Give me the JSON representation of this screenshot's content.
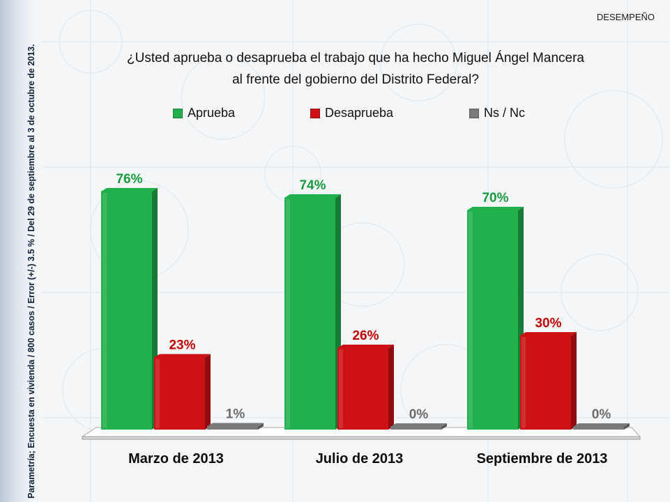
{
  "header": {
    "section": "DESEMPEÑO",
    "side_note": "Parametría; Encuesta en vivienda / 800 casos / Error (+/-) 3.5 % / Del 29 de septiembre al 3 de octubre de 2013."
  },
  "chart_data": {
    "type": "bar",
    "title_line1": "¿Usted aprueba o desaprueba el trabajo que ha hecho Miguel Ángel Mancera",
    "title_line2": "al frente del gobierno del Distrito Federal?",
    "categories": [
      "Marzo de 2013",
      "Julio de 2013",
      "Septiembre de 2013"
    ],
    "series": [
      {
        "name": "Aprueba",
        "values": [
          76,
          74,
          70
        ],
        "labels": [
          "76%",
          "74%",
          "70%"
        ],
        "color": "#21b04b",
        "label_color": "#1a9a3e"
      },
      {
        "name": "Desaprueba",
        "values": [
          23,
          26,
          30
        ],
        "labels": [
          "23%",
          "26%",
          "30%"
        ],
        "color": "#cc1214",
        "label_color": "#c00000"
      },
      {
        "name": "Ns / Nc",
        "values": [
          1,
          0,
          0
        ],
        "labels": [
          "1%",
          "0%",
          "0%"
        ],
        "color": "#7a7a7a",
        "label_color": "#6b6b6b"
      }
    ],
    "ylim": [
      0,
      80
    ],
    "legend": "top",
    "grid": false
  }
}
